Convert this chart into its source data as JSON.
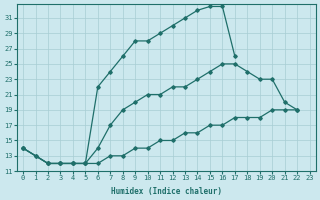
{
  "xlabel": "Humidex (Indice chaleur)",
  "bg_color": "#cce8ee",
  "line_color": "#1f6f6a",
  "grid_color": "#a8cdd4",
  "xlim": [
    -0.5,
    23.5
  ],
  "ylim": [
    11,
    32.8
  ],
  "xticks": [
    0,
    1,
    2,
    3,
    4,
    5,
    6,
    7,
    8,
    9,
    10,
    11,
    12,
    13,
    14,
    15,
    16,
    17,
    18,
    19,
    20,
    21,
    22,
    23
  ],
  "yticks": [
    11,
    13,
    15,
    17,
    19,
    21,
    23,
    25,
    27,
    29,
    31
  ],
  "curve1": {
    "x": [
      0,
      1,
      2,
      3,
      4,
      5,
      6,
      7,
      8,
      9,
      10,
      11,
      12,
      13,
      14,
      15,
      16,
      17
    ],
    "y": [
      14,
      13,
      12,
      12,
      12,
      12,
      22,
      24,
      26,
      28,
      28,
      29,
      30,
      31,
      32,
      32.5,
      32.5,
      26
    ]
  },
  "curve2": {
    "x": [
      0,
      1,
      2,
      3,
      4,
      5,
      6,
      7,
      8,
      9,
      10,
      11,
      12,
      13,
      14,
      15,
      16,
      17,
      18,
      19,
      20,
      21,
      22
    ],
    "y": [
      14,
      13,
      12,
      12,
      12,
      12,
      14,
      17,
      19,
      20,
      21,
      21,
      22,
      22,
      23,
      24,
      25,
      25,
      24,
      23,
      23,
      20,
      19
    ]
  },
  "curve3": {
    "x": [
      0,
      2,
      3,
      4,
      5,
      6,
      7,
      8,
      9,
      10,
      11,
      12,
      13,
      14,
      15,
      16,
      17,
      18,
      19,
      20,
      21,
      22
    ],
    "y": [
      14,
      12,
      12,
      12,
      12,
      12,
      13,
      13,
      14,
      14,
      15,
      15,
      16,
      16,
      17,
      17,
      18,
      18,
      18,
      19,
      19,
      19
    ]
  }
}
